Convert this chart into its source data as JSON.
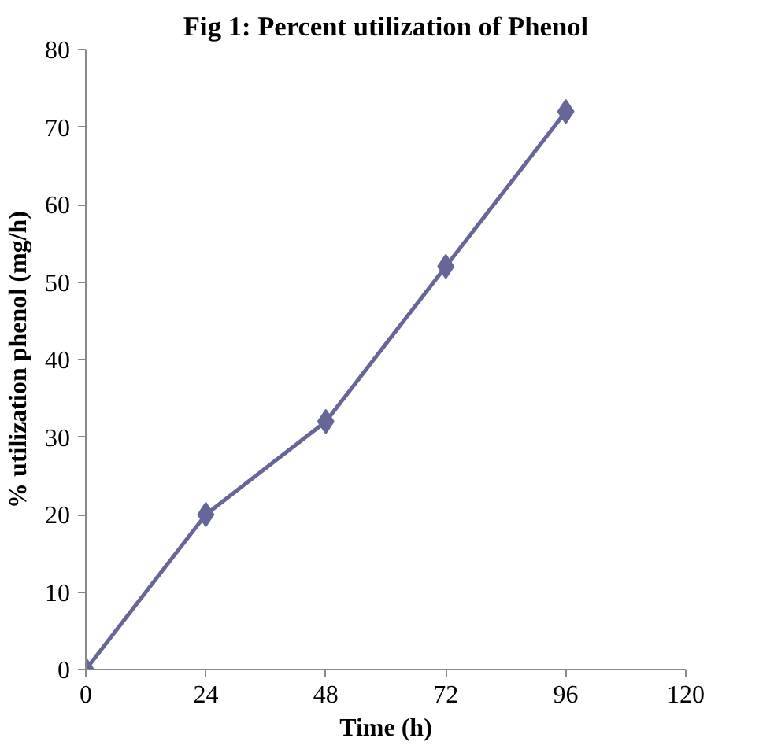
{
  "chart_data": {
    "type": "line",
    "title": "Fig 1: Percent utilization of Phenol",
    "xlabel": "Time (h)",
    "ylabel": "% utilization phenol (mg/h)",
    "x": [
      0,
      24,
      48,
      72,
      96
    ],
    "series": [
      {
        "color": "#666699",
        "values": [
          0,
          20,
          32,
          52,
          72
        ]
      }
    ],
    "xlim": [
      0,
      120
    ],
    "xticks": [
      0,
      24,
      48,
      72,
      96,
      120
    ],
    "ylim": [
      0,
      80
    ],
    "yticks": [
      0,
      10,
      20,
      30,
      40,
      50,
      60,
      70,
      80
    ],
    "grid": false,
    "marker": "diamond",
    "line_style": "solid"
  }
}
